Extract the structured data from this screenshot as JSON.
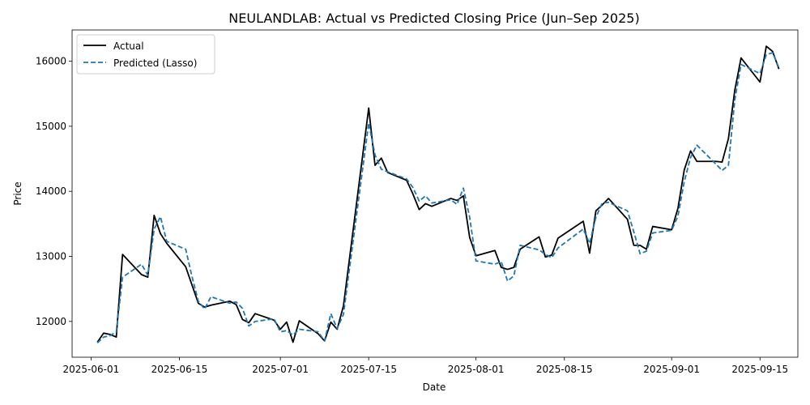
{
  "chart_data": {
    "type": "line",
    "title": "NEULANDLAB: Actual vs Predicted Closing Price (Jun–Sep 2025)",
    "xlabel": "Date",
    "ylabel": "Price",
    "xlim": [
      "2025-05-29",
      "2025-09-21"
    ],
    "ylim": [
      11450,
      16480
    ],
    "x_ticks": [
      "2025-06-01",
      "2025-06-15",
      "2025-07-01",
      "2025-07-15",
      "2025-08-01",
      "2025-08-15",
      "2025-09-01",
      "2025-09-15"
    ],
    "y_ticks": [
      12000,
      13000,
      14000,
      15000,
      16000
    ],
    "grid": false,
    "legend_placement": "top-left",
    "series": [
      {
        "name": "Actual",
        "color": "#000000",
        "style": "solid",
        "points": [
          [
            "2025-06-02",
            11680
          ],
          [
            "2025-06-03",
            11820
          ],
          [
            "2025-06-04",
            11800
          ],
          [
            "2025-06-05",
            11760
          ],
          [
            "2025-06-06",
            13030
          ],
          [
            "2025-06-09",
            12720
          ],
          [
            "2025-06-10",
            12680
          ],
          [
            "2025-06-11",
            13630
          ],
          [
            "2025-06-12",
            13350
          ],
          [
            "2025-06-13",
            13200
          ],
          [
            "2025-06-16",
            12840
          ],
          [
            "2025-06-17",
            12560
          ],
          [
            "2025-06-18",
            12280
          ],
          [
            "2025-06-19",
            12220
          ],
          [
            "2025-06-20",
            12250
          ],
          [
            "2025-06-23",
            12310
          ],
          [
            "2025-06-24",
            12260
          ],
          [
            "2025-06-25",
            12030
          ],
          [
            "2025-06-26",
            11980
          ],
          [
            "2025-06-27",
            12120
          ],
          [
            "2025-06-30",
            12020
          ],
          [
            "2025-07-01",
            11880
          ],
          [
            "2025-07-02",
            11990
          ],
          [
            "2025-07-03",
            11680
          ],
          [
            "2025-07-04",
            12010
          ],
          [
            "2025-07-07",
            11810
          ],
          [
            "2025-07-08",
            11700
          ],
          [
            "2025-07-09",
            11990
          ],
          [
            "2025-07-10",
            11880
          ],
          [
            "2025-07-11",
            12240
          ],
          [
            "2025-07-15",
            15280
          ],
          [
            "2025-07-16",
            14400
          ],
          [
            "2025-07-17",
            14510
          ],
          [
            "2025-07-18",
            14290
          ],
          [
            "2025-07-21",
            14170
          ],
          [
            "2025-07-22",
            13960
          ],
          [
            "2025-07-23",
            13720
          ],
          [
            "2025-07-24",
            13810
          ],
          [
            "2025-07-25",
            13770
          ],
          [
            "2025-07-28",
            13890
          ],
          [
            "2025-07-29",
            13860
          ],
          [
            "2025-07-30",
            13930
          ],
          [
            "2025-07-31",
            13290
          ],
          [
            "2025-08-01",
            13010
          ],
          [
            "2025-08-04",
            13090
          ],
          [
            "2025-08-05",
            12830
          ],
          [
            "2025-08-06",
            12800
          ],
          [
            "2025-08-07",
            12830
          ],
          [
            "2025-08-08",
            13110
          ],
          [
            "2025-08-11",
            13300
          ],
          [
            "2025-08-12",
            12990
          ],
          [
            "2025-08-13",
            13020
          ],
          [
            "2025-08-14",
            13280
          ],
          [
            "2025-08-18",
            13540
          ],
          [
            "2025-08-19",
            13050
          ],
          [
            "2025-08-20",
            13700
          ],
          [
            "2025-08-21",
            13790
          ],
          [
            "2025-08-22",
            13890
          ],
          [
            "2025-08-25",
            13570
          ],
          [
            "2025-08-26",
            13170
          ],
          [
            "2025-08-27",
            13170
          ],
          [
            "2025-08-28",
            13110
          ],
          [
            "2025-08-29",
            13460
          ],
          [
            "2025-09-01",
            13410
          ],
          [
            "2025-09-02",
            13740
          ],
          [
            "2025-09-03",
            14330
          ],
          [
            "2025-09-04",
            14620
          ],
          [
            "2025-09-05",
            14460
          ],
          [
            "2025-09-08",
            14460
          ],
          [
            "2025-09-09",
            14450
          ],
          [
            "2025-09-10",
            14810
          ],
          [
            "2025-09-11",
            15550
          ],
          [
            "2025-09-12",
            16050
          ],
          [
            "2025-09-15",
            15680
          ],
          [
            "2025-09-16",
            16230
          ],
          [
            "2025-09-17",
            16150
          ],
          [
            "2025-09-18",
            15880
          ]
        ]
      },
      {
        "name": "Predicted (Lasso)",
        "color": "#1f77b4",
        "style": "dashed",
        "points": [
          [
            "2025-06-02",
            11670
          ],
          [
            "2025-06-03",
            11760
          ],
          [
            "2025-06-04",
            11780
          ],
          [
            "2025-06-05",
            11840
          ],
          [
            "2025-06-06",
            12680
          ],
          [
            "2025-06-09",
            12880
          ],
          [
            "2025-06-10",
            12710
          ],
          [
            "2025-06-11",
            13420
          ],
          [
            "2025-06-12",
            13610
          ],
          [
            "2025-06-13",
            13230
          ],
          [
            "2025-06-16",
            13110
          ],
          [
            "2025-06-17",
            12690
          ],
          [
            "2025-06-18",
            12310
          ],
          [
            "2025-06-19",
            12190
          ],
          [
            "2025-06-20",
            12380
          ],
          [
            "2025-06-23",
            12280
          ],
          [
            "2025-06-24",
            12300
          ],
          [
            "2025-06-25",
            12200
          ],
          [
            "2025-06-26",
            11930
          ],
          [
            "2025-06-27",
            12000
          ],
          [
            "2025-06-30",
            12040
          ],
          [
            "2025-07-01",
            11840
          ],
          [
            "2025-07-02",
            11860
          ],
          [
            "2025-07-03",
            11790
          ],
          [
            "2025-07-04",
            11880
          ],
          [
            "2025-07-07",
            11840
          ],
          [
            "2025-07-08",
            11700
          ],
          [
            "2025-07-09",
            12120
          ],
          [
            "2025-07-10",
            11890
          ],
          [
            "2025-07-11",
            12110
          ],
          [
            "2025-07-15",
            15050
          ],
          [
            "2025-07-16",
            14560
          ],
          [
            "2025-07-17",
            14340
          ],
          [
            "2025-07-18",
            14300
          ],
          [
            "2025-07-21",
            14190
          ],
          [
            "2025-07-22",
            14060
          ],
          [
            "2025-07-23",
            13850
          ],
          [
            "2025-07-24",
            13930
          ],
          [
            "2025-07-25",
            13820
          ],
          [
            "2025-07-28",
            13870
          ],
          [
            "2025-07-29",
            13800
          ],
          [
            "2025-07-30",
            14050
          ],
          [
            "2025-07-31",
            13600
          ],
          [
            "2025-08-01",
            12930
          ],
          [
            "2025-08-04",
            12880
          ],
          [
            "2025-08-05",
            12920
          ],
          [
            "2025-08-06",
            12620
          ],
          [
            "2025-08-07",
            12700
          ],
          [
            "2025-08-08",
            13170
          ],
          [
            "2025-08-11",
            13100
          ],
          [
            "2025-08-12",
            13030
          ],
          [
            "2025-08-13",
            12980
          ],
          [
            "2025-08-14",
            13130
          ],
          [
            "2025-08-18",
            13420
          ],
          [
            "2025-08-19",
            13200
          ],
          [
            "2025-08-20",
            13600
          ],
          [
            "2025-08-21",
            13820
          ],
          [
            "2025-08-22",
            13830
          ],
          [
            "2025-08-25",
            13700
          ],
          [
            "2025-08-26",
            13380
          ],
          [
            "2025-08-27",
            13040
          ],
          [
            "2025-08-28",
            13080
          ],
          [
            "2025-08-29",
            13360
          ],
          [
            "2025-09-01",
            13400
          ],
          [
            "2025-09-02",
            13620
          ],
          [
            "2025-09-03",
            14150
          ],
          [
            "2025-09-04",
            14520
          ],
          [
            "2025-09-05",
            14710
          ],
          [
            "2025-09-08",
            14420
          ],
          [
            "2025-09-09",
            14320
          ],
          [
            "2025-09-10",
            14400
          ],
          [
            "2025-09-11",
            15400
          ],
          [
            "2025-09-12",
            15950
          ],
          [
            "2025-09-15",
            15810
          ],
          [
            "2025-09-16",
            16100
          ],
          [
            "2025-09-17",
            16130
          ],
          [
            "2025-09-18",
            15900
          ]
        ]
      }
    ]
  }
}
